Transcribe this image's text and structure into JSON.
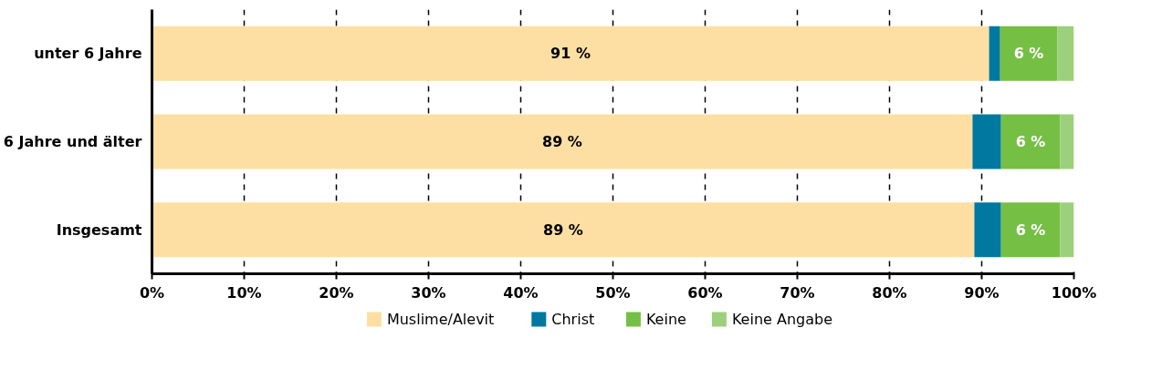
{
  "chart_data": {
    "type": "bar",
    "orientation": "horizontal",
    "stacked": true,
    "categories": [
      "unter 6 Jahre",
      "6 Jahre und älter",
      "Insgesamt"
    ],
    "series": [
      {
        "name": "Muslime/Alevit",
        "color": "#fddfa4",
        "values": [
          90.8,
          89.0,
          89.2
        ],
        "value_labels": [
          "91 %",
          "89 %",
          "89 %"
        ]
      },
      {
        "name": "Christ",
        "color": "#0078a0",
        "values": [
          1.2,
          3.1,
          2.9
        ]
      },
      {
        "name": "Keine",
        "color": "#76bf45",
        "values": [
          6.2,
          6.4,
          6.4
        ],
        "value_labels": [
          "6 %",
          "6 %",
          "6 %"
        ]
      },
      {
        "name": "Keine Angabe",
        "color": "#9dd07c",
        "values": [
          1.8,
          1.5,
          1.5
        ]
      }
    ],
    "xlim": [
      0,
      100
    ],
    "xticks": [
      {
        "value": 0,
        "label": "0%"
      },
      {
        "value": 10,
        "label": "10%"
      },
      {
        "value": 20,
        "label": "20%"
      },
      {
        "value": 30,
        "label": "30%"
      },
      {
        "value": 40,
        "label": "40%"
      },
      {
        "value": 50,
        "label": "50%"
      },
      {
        "value": 60,
        "label": "60%"
      },
      {
        "value": 70,
        "label": "70%"
      },
      {
        "value": 80,
        "label": "80%"
      },
      {
        "value": 90,
        "label": "90%"
      },
      {
        "value": 100,
        "label": "100%"
      }
    ],
    "grid": "x",
    "legend": "bottom"
  }
}
